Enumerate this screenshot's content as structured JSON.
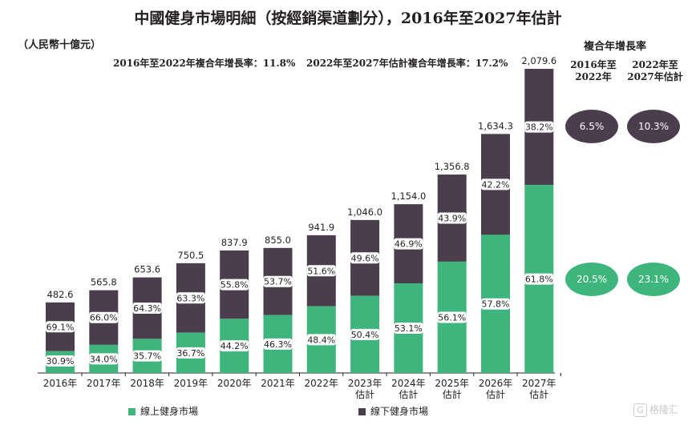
{
  "title": "中國健身市場明細（按經銷渠道劃分），2016年至2027年估計",
  "unit_label": "（人民幣十億元）",
  "cagr_notes": [
    "2016年至2022年複合年增長率：11.8%",
    "2022年至2027年估計複合年增長率：17.2%"
  ],
  "cagr_panel": {
    "title": "複合年增長率",
    "columns": [
      "2016年至\n2022年",
      "2022年至\n2027年估計"
    ],
    "offline": [
      "6.5%",
      "10.3%"
    ],
    "online": [
      "20.5%",
      "23.1%"
    ]
  },
  "legend": {
    "online": "線上健身市場",
    "offline": "線下健身市場"
  },
  "colors": {
    "online": "#3db57c",
    "offline": "#4a3e4c"
  },
  "watermark": "格隆汇",
  "chart_data": {
    "type": "bar",
    "stacked": true,
    "percent_labels": true,
    "categories": [
      "2016年",
      "2017年",
      "2018年",
      "2019年",
      "2020年",
      "2021年",
      "2022年",
      "2023年\n估計",
      "2024年\n估計",
      "2025年\n估計",
      "2026年\n估計",
      "2027年\n估計"
    ],
    "totals": [
      482.6,
      565.8,
      653.6,
      750.5,
      837.9,
      855.0,
      941.9,
      1046.0,
      1154.0,
      1356.8,
      1634.3,
      2079.6
    ],
    "total_labels": [
      "482.6",
      "565.8",
      "653.6",
      "750.5",
      "837.9",
      "855.0",
      "941.9",
      "1,046.0",
      "1,154.0",
      "1,356.8",
      "1,634.3",
      "2,079.6"
    ],
    "series": [
      {
        "name": "線上健身市場",
        "share_labels": [
          "30.9%",
          "34.0%",
          "35.7%",
          "36.7%",
          "44.2%",
          "46.3%",
          "48.4%",
          "50.4%",
          "53.1%",
          "56.1%",
          "57.8%",
          "61.8%"
        ],
        "shares": [
          30.9,
          34.0,
          35.7,
          36.7,
          44.2,
          46.3,
          48.4,
          50.4,
          53.1,
          56.1,
          57.8,
          61.8
        ]
      },
      {
        "name": "線下健身市場",
        "share_labels": [
          "69.1%",
          "66.0%",
          "64.3%",
          "63.3%",
          "55.8%",
          "53.7%",
          "51.6%",
          "49.6%",
          "46.9%",
          "43.9%",
          "42.2%",
          "38.2%"
        ],
        "shares": [
          69.1,
          66.0,
          64.3,
          63.3,
          55.8,
          53.7,
          51.6,
          49.6,
          46.9,
          43.9,
          42.2,
          38.2
        ]
      }
    ]
  }
}
